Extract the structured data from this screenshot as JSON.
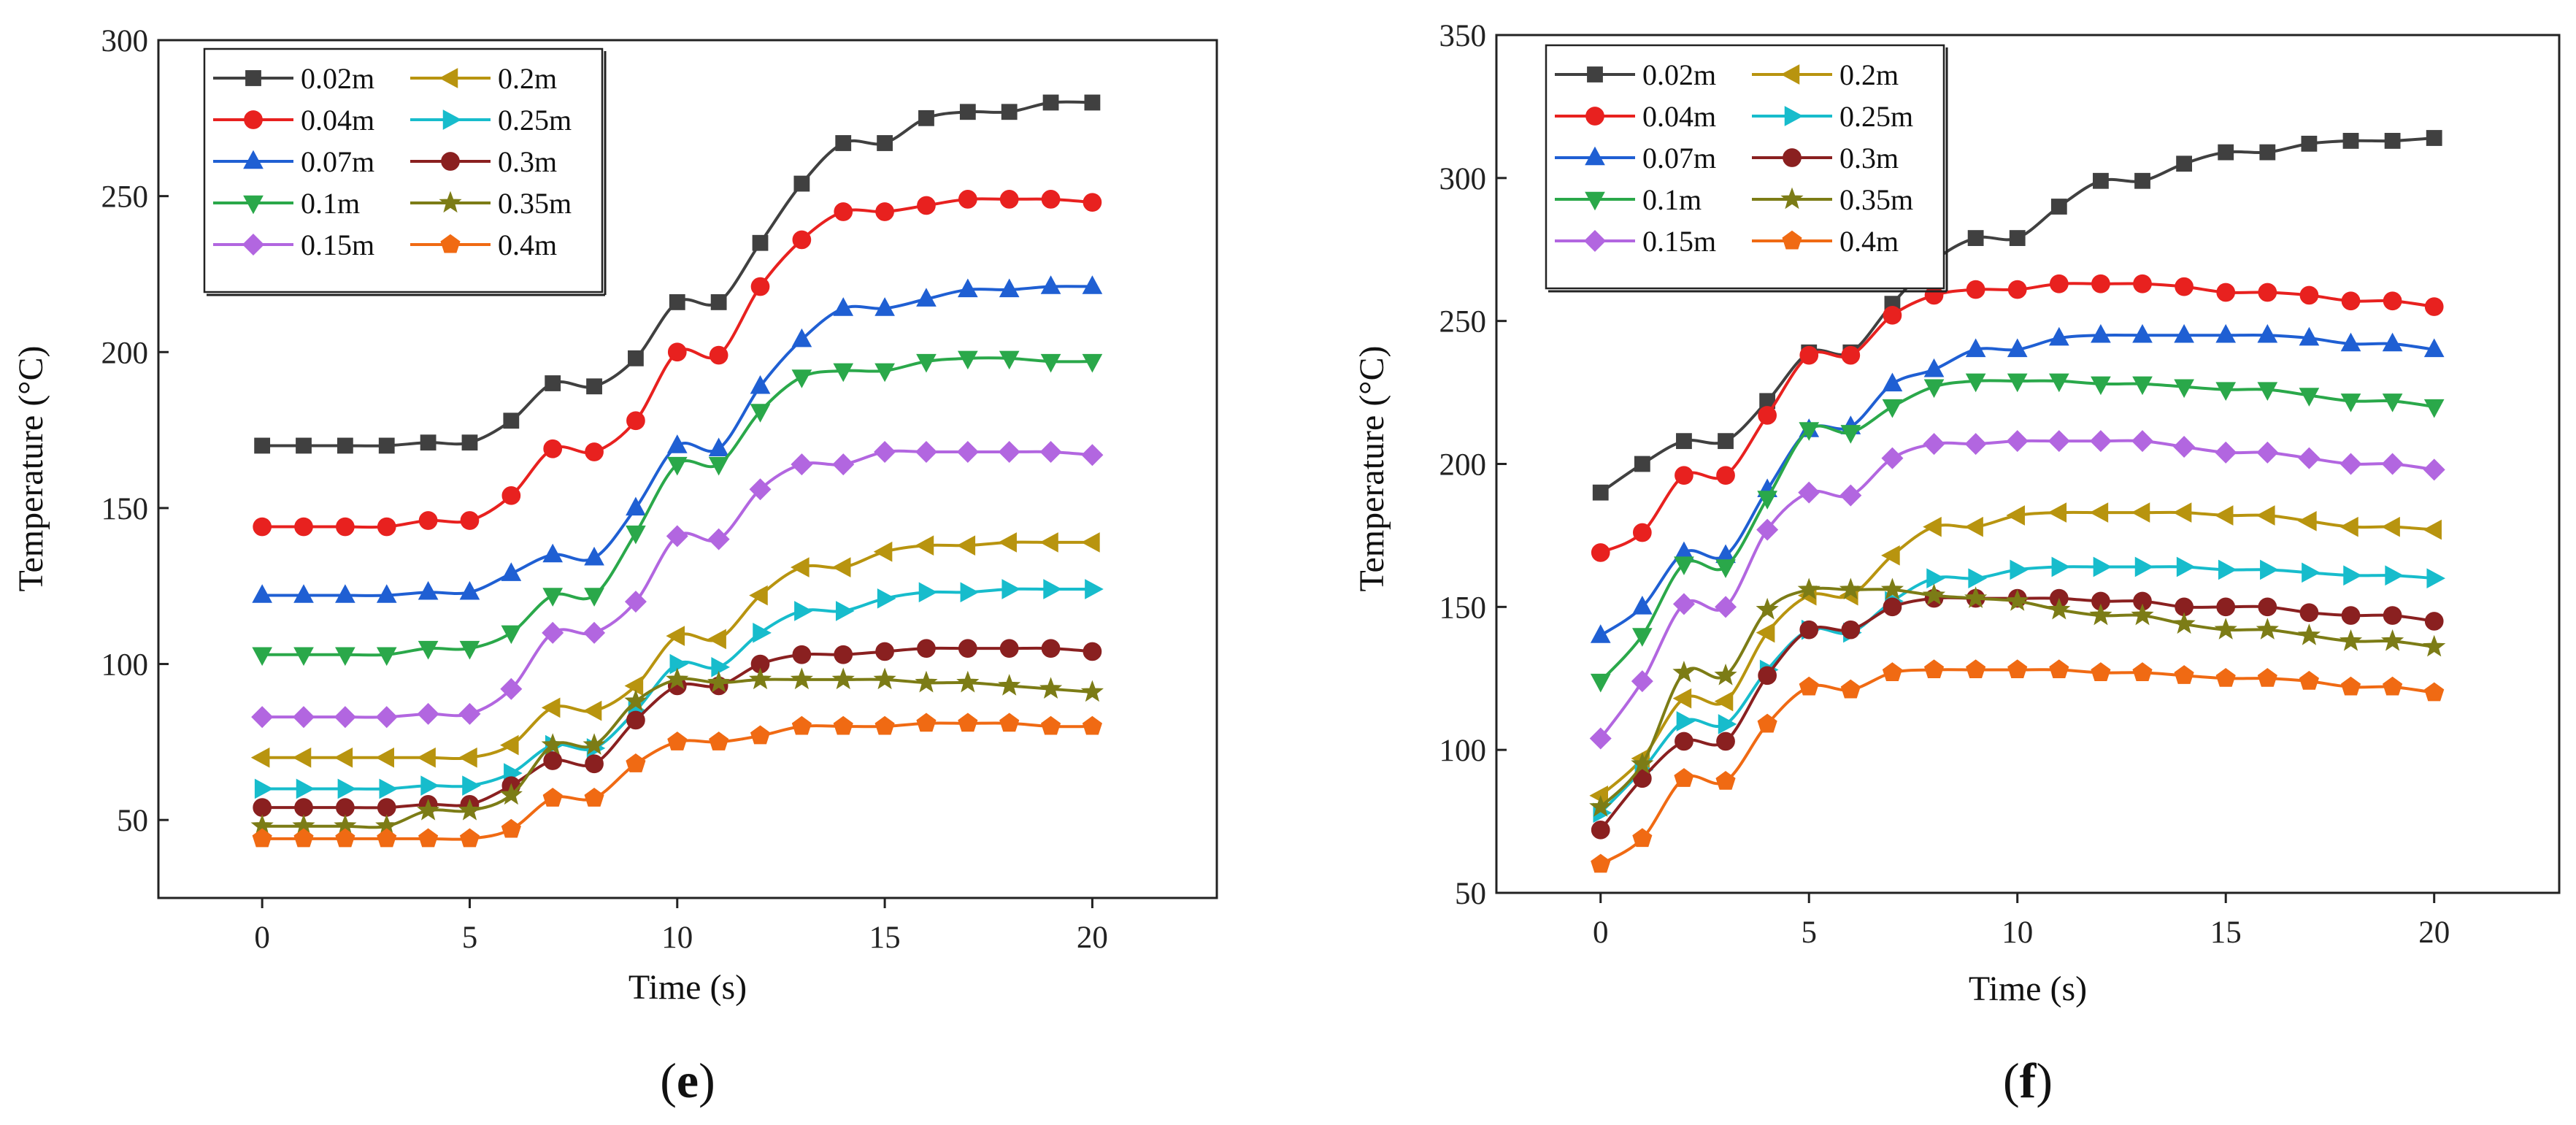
{
  "chart_data": [
    {
      "type": "line",
      "panel_label": "e",
      "xlabel": "Time (s)",
      "ylabel": "Temperature (°C)",
      "xlim": [
        -2.5,
        23
      ],
      "ylim": [
        25,
        300
      ],
      "xticks": [
        0,
        5,
        10,
        15,
        20
      ],
      "yticks": [
        50,
        100,
        150,
        200,
        250,
        300
      ],
      "legend": "top-left",
      "x": [
        0,
        1,
        2,
        3,
        4,
        5,
        6,
        7,
        8,
        9,
        10,
        11,
        12,
        13,
        14,
        15,
        16,
        17,
        18,
        19,
        20
      ],
      "series": [
        {
          "name": "0.02m",
          "color": "#404040",
          "marker": "square",
          "values": [
            170,
            170,
            170,
            170,
            171,
            171,
            178,
            190,
            189,
            198,
            216,
            216,
            235,
            254,
            267,
            267,
            275,
            277,
            277,
            280,
            280
          ]
        },
        {
          "name": "0.04m",
          "color": "#e8211f",
          "marker": "circle",
          "values": [
            144,
            144,
            144,
            144,
            146,
            146,
            154,
            169,
            168,
            178,
            200,
            199,
            221,
            236,
            245,
            245,
            247,
            249,
            249,
            249,
            248
          ]
        },
        {
          "name": "0.07m",
          "color": "#1f5fd3",
          "marker": "triangle-up",
          "values": [
            122,
            122,
            122,
            122,
            123,
            123,
            129,
            135,
            134,
            150,
            170,
            169,
            189,
            204,
            214,
            214,
            217,
            220,
            220,
            221,
            221
          ]
        },
        {
          "name": "0.1m",
          "color": "#2aa84a",
          "marker": "triangle-down",
          "values": [
            103,
            103,
            103,
            103,
            105,
            105,
            110,
            122,
            122,
            142,
            164,
            164,
            181,
            192,
            194,
            194,
            197,
            198,
            198,
            197,
            197
          ]
        },
        {
          "name": "0.15m",
          "color": "#b266e0",
          "marker": "diamond",
          "values": [
            83,
            83,
            83,
            83,
            84,
            84,
            92,
            110,
            110,
            120,
            141,
            140,
            156,
            164,
            164,
            168,
            168,
            168,
            168,
            168,
            167
          ]
        },
        {
          "name": "0.2m",
          "color": "#b8940f",
          "marker": "triangle-left",
          "values": [
            70,
            70,
            70,
            70,
            70,
            70,
            74,
            86,
            85,
            93,
            109,
            108,
            122,
            131,
            131,
            136,
            138,
            138,
            139,
            139,
            139
          ]
        },
        {
          "name": "0.25m",
          "color": "#17bccc",
          "marker": "triangle-right",
          "values": [
            60,
            60,
            60,
            60,
            61,
            61,
            65,
            74,
            73,
            85,
            100,
            99,
            110,
            117,
            117,
            121,
            123,
            123,
            124,
            124,
            124
          ]
        },
        {
          "name": "0.3m",
          "color": "#8a2020",
          "marker": "circle",
          "values": [
            54,
            54,
            54,
            54,
            55,
            55,
            61,
            69,
            68,
            82,
            93,
            93,
            100,
            103,
            103,
            104,
            105,
            105,
            105,
            105,
            104
          ]
        },
        {
          "name": "0.35m",
          "color": "#7c7c16",
          "marker": "star",
          "values": [
            48,
            48,
            48,
            48,
            53,
            53,
            58,
            74,
            74,
            88,
            95,
            94,
            95,
            95,
            95,
            95,
            94,
            94,
            93,
            92,
            91
          ]
        },
        {
          "name": "0.4m",
          "color": "#f06a13",
          "marker": "pentagon",
          "values": [
            44,
            44,
            44,
            44,
            44,
            44,
            47,
            57,
            57,
            68,
            75,
            75,
            77,
            80,
            80,
            80,
            81,
            81,
            81,
            80,
            80
          ]
        }
      ]
    },
    {
      "type": "line",
      "panel_label": "f",
      "xlabel": "Time (s)",
      "ylabel": "Temperature (°C)",
      "xlim": [
        -2.5,
        23
      ],
      "ylim": [
        50,
        350
      ],
      "xticks": [
        0,
        5,
        10,
        15,
        20
      ],
      "yticks": [
        50,
        100,
        150,
        200,
        250,
        300,
        350
      ],
      "legend": "top-left",
      "x": [
        0,
        1,
        2,
        3,
        4,
        5,
        6,
        7,
        8,
        9,
        10,
        11,
        12,
        13,
        14,
        15,
        16,
        17,
        18,
        19,
        20
      ],
      "series": [
        {
          "name": "0.02m",
          "color": "#404040",
          "marker": "square",
          "values": [
            190,
            200,
            208,
            208,
            222,
            239,
            239,
            256,
            271,
            279,
            279,
            290,
            299,
            299,
            305,
            309,
            309,
            312,
            313,
            313,
            314
          ]
        },
        {
          "name": "0.04m",
          "color": "#e8211f",
          "marker": "circle",
          "values": [
            169,
            176,
            196,
            196,
            217,
            238,
            238,
            252,
            259,
            261,
            261,
            263,
            263,
            263,
            262,
            260,
            260,
            259,
            257,
            257,
            255
          ]
        },
        {
          "name": "0.07m",
          "color": "#1f5fd3",
          "marker": "triangle-up",
          "values": [
            140,
            150,
            169,
            168,
            191,
            212,
            213,
            228,
            233,
            240,
            240,
            244,
            245,
            245,
            245,
            245,
            245,
            244,
            242,
            242,
            240
          ]
        },
        {
          "name": "0.1m",
          "color": "#2aa84a",
          "marker": "triangle-down",
          "values": [
            124,
            140,
            165,
            164,
            188,
            212,
            211,
            220,
            227,
            229,
            229,
            229,
            228,
            228,
            227,
            226,
            226,
            224,
            222,
            222,
            220
          ]
        },
        {
          "name": "0.15m",
          "color": "#b266e0",
          "marker": "diamond",
          "values": [
            104,
            124,
            151,
            150,
            177,
            190,
            189,
            202,
            207,
            207,
            208,
            208,
            208,
            208,
            206,
            204,
            204,
            202,
            200,
            200,
            198
          ]
        },
        {
          "name": "0.2m",
          "color": "#b8940f",
          "marker": "triangle-left",
          "values": [
            84,
            97,
            118,
            117,
            141,
            154,
            154,
            168,
            178,
            178,
            182,
            183,
            183,
            183,
            183,
            182,
            182,
            180,
            178,
            178,
            177
          ]
        },
        {
          "name": "0.25m",
          "color": "#17bccc",
          "marker": "triangle-right",
          "values": [
            78,
            93,
            110,
            109,
            128,
            142,
            141,
            152,
            160,
            160,
            163,
            164,
            164,
            164,
            164,
            163,
            163,
            162,
            161,
            161,
            160
          ]
        },
        {
          "name": "0.3m",
          "color": "#8a2020",
          "marker": "circle",
          "values": [
            72,
            90,
            103,
            103,
            126,
            142,
            142,
            150,
            153,
            153,
            153,
            153,
            152,
            152,
            150,
            150,
            150,
            148,
            147,
            147,
            145
          ]
        },
        {
          "name": "0.35m",
          "color": "#7c7c16",
          "marker": "star",
          "values": [
            80,
            95,
            127,
            126,
            149,
            156,
            156,
            156,
            154,
            153,
            152,
            149,
            147,
            147,
            144,
            142,
            142,
            140,
            138,
            138,
            136
          ]
        },
        {
          "name": "0.4m",
          "color": "#f06a13",
          "marker": "pentagon",
          "values": [
            60,
            69,
            90,
            89,
            109,
            122,
            121,
            127,
            128,
            128,
            128,
            128,
            127,
            127,
            126,
            125,
            125,
            124,
            122,
            122,
            120
          ]
        }
      ]
    }
  ]
}
